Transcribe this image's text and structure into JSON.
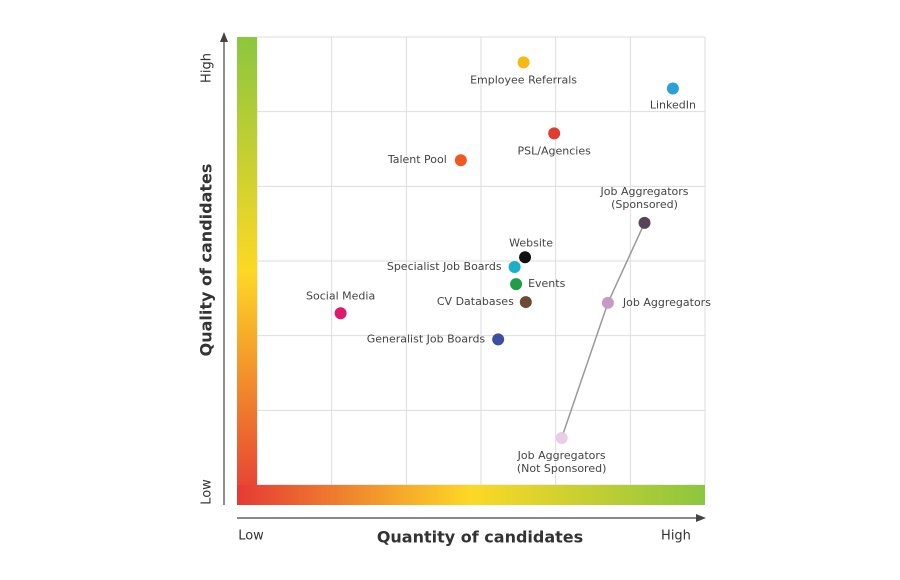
{
  "chart_data": {
    "type": "scatter",
    "x_label": "Quantity of candidates",
    "y_label": "Quality of candidates",
    "x_low": "Low",
    "x_high": "High",
    "y_low": "Low",
    "y_high": "High",
    "xlim": [
      0,
      6
    ],
    "ylim": [
      0,
      6
    ],
    "xticks": [
      0,
      1,
      2,
      3,
      4,
      5,
      6
    ],
    "yticks": [
      0,
      1,
      2,
      3,
      4,
      5,
      6
    ],
    "grid": true,
    "points": [
      {
        "label": "Employee Referrals",
        "x": 3.57,
        "y": 5.66,
        "color": "#f5b914"
      },
      {
        "label": "LinkedIn",
        "x": 5.57,
        "y": 5.31,
        "color": "#2a9fd8"
      },
      {
        "label": "PSL/Agencies",
        "x": 3.98,
        "y": 4.71,
        "color": "#e53a2e"
      },
      {
        "label": "Talent Pool",
        "x": 2.73,
        "y": 4.35,
        "color": "#f05a22"
      },
      {
        "label": [
          "Job Aggregators",
          "(Sponsored)"
        ],
        "x": 5.19,
        "y": 3.51,
        "color": "#5a4358"
      },
      {
        "label": "Website",
        "x": 3.59,
        "y": 3.05,
        "color": "#111111"
      },
      {
        "label": "Specialist Job Boards",
        "x": 3.45,
        "y": 2.92,
        "color": "#1ab0c8"
      },
      {
        "label": "Events",
        "x": 3.47,
        "y": 2.69,
        "color": "#1f9e4a"
      },
      {
        "label": "CV Databases",
        "x": 3.6,
        "y": 2.45,
        "color": "#6b4a36"
      },
      {
        "label": "Job Aggregators",
        "x": 4.7,
        "y": 2.44,
        "color": "#c89ac3"
      },
      {
        "label": "Social Media",
        "x": 1.12,
        "y": 2.3,
        "color": "#e0186e"
      },
      {
        "label": "Generalist Job Boards",
        "x": 3.23,
        "y": 1.95,
        "color": "#3d4fa5"
      },
      {
        "label": [
          "Job Aggregators",
          "(Not Sponsored)"
        ],
        "x": 4.08,
        "y": 0.63,
        "color": "#e6cfe2"
      }
    ]
  }
}
